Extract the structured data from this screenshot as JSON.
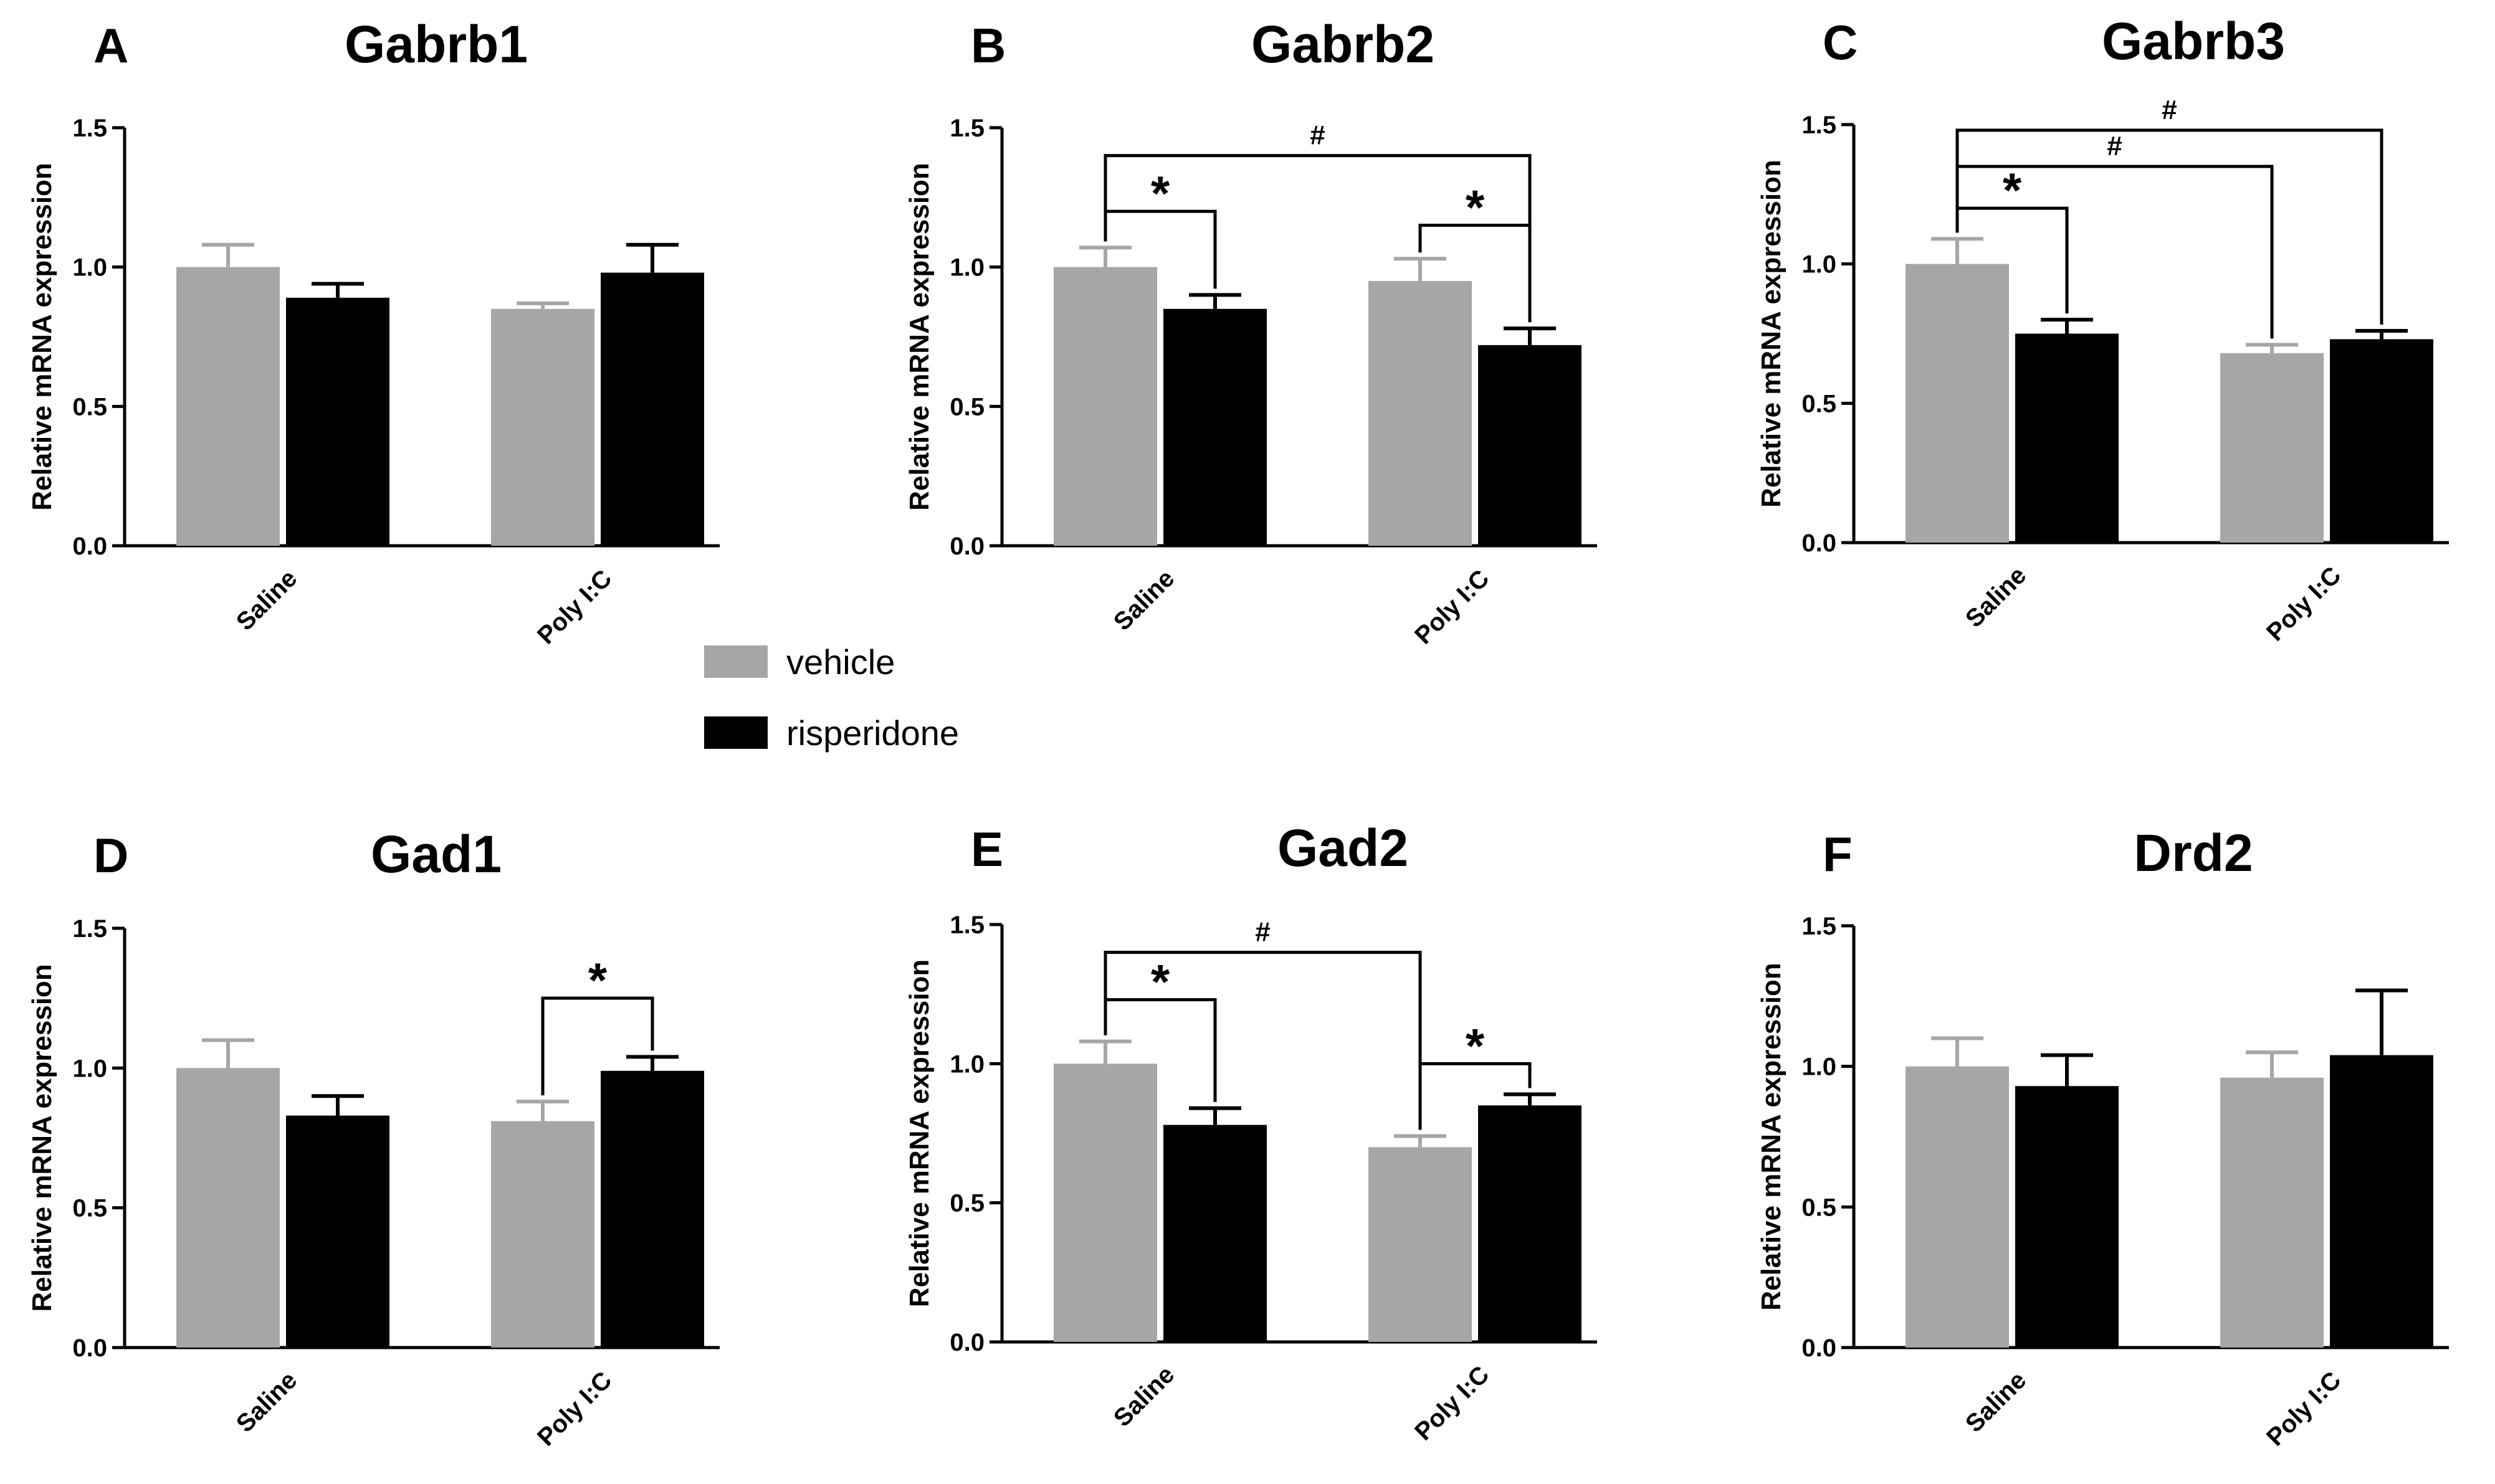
{
  "figure": {
    "legend": [
      {
        "label": "vehicle"
      },
      {
        "label": "risperidone"
      }
    ]
  },
  "colors": {
    "vehicle": "#a6a6a8",
    "risperidone": "#000000",
    "axis": "#000000"
  },
  "chart_data": [
    {
      "panel": "A",
      "type": "bar",
      "title": "Gabrb1",
      "xlabel": "",
      "ylabel": "Relative mRNA expression",
      "ylim": [
        0,
        1.5
      ],
      "yticks": [
        "0.0",
        "0.5",
        "1.0",
        "1.5"
      ],
      "categories": [
        "Saline",
        "Poly I:C"
      ],
      "series": [
        {
          "name": "vehicle",
          "values": [
            1.0,
            0.85
          ],
          "errors": [
            0.08,
            0.02
          ]
        },
        {
          "name": "risperidone",
          "values": [
            0.89,
            0.98
          ],
          "errors": [
            0.05,
            0.1
          ]
        }
      ],
      "annotations": []
    },
    {
      "panel": "B",
      "type": "bar",
      "title": "Gabrb2",
      "xlabel": "",
      "ylabel": "Relative mRNA expression",
      "ylim": [
        0,
        1.5
      ],
      "yticks": [
        "0.0",
        "0.5",
        "1.0",
        "1.5"
      ],
      "categories": [
        "Saline",
        "Poly I:C"
      ],
      "series": [
        {
          "name": "vehicle",
          "values": [
            1.0,
            0.95
          ],
          "errors": [
            0.07,
            0.08
          ]
        },
        {
          "name": "risperidone",
          "values": [
            0.85,
            0.72
          ],
          "errors": [
            0.05,
            0.06
          ]
        }
      ],
      "annotations": [
        {
          "symbol": "*",
          "from": [
            0,
            0
          ],
          "to": [
            0,
            1
          ],
          "level": 1.2
        },
        {
          "symbol": "*",
          "from": [
            1,
            0
          ],
          "to": [
            1,
            1
          ],
          "level": 1.15
        },
        {
          "symbol": "#",
          "from": [
            0,
            0
          ],
          "to": [
            1,
            1
          ],
          "level": 1.4
        }
      ]
    },
    {
      "panel": "C",
      "type": "bar",
      "title": "Gabrb3",
      "xlabel": "",
      "ylabel": "Relative mRNA expression",
      "ylim": [
        0,
        1.5
      ],
      "yticks": [
        "0.0",
        "0.5",
        "1.0",
        "1.5"
      ],
      "categories": [
        "Saline",
        "Poly I:C"
      ],
      "series": [
        {
          "name": "vehicle",
          "values": [
            1.0,
            0.68
          ],
          "errors": [
            0.09,
            0.03
          ]
        },
        {
          "name": "risperidone",
          "values": [
            0.75,
            0.73
          ],
          "errors": [
            0.05,
            0.03
          ]
        }
      ],
      "annotations": [
        {
          "symbol": "*",
          "from": [
            0,
            0
          ],
          "to": [
            0,
            1
          ],
          "level": 1.2
        },
        {
          "symbol": "#",
          "from": [
            0,
            0
          ],
          "to": [
            1,
            0
          ],
          "level": 1.35
        },
        {
          "symbol": "#",
          "from": [
            0,
            0
          ],
          "to": [
            1,
            1
          ],
          "level": 1.48
        }
      ]
    },
    {
      "panel": "D",
      "type": "bar",
      "title": "Gad1",
      "xlabel": "",
      "ylabel": "Relative mRNA expression",
      "ylim": [
        0,
        1.5
      ],
      "yticks": [
        "0.0",
        "0.5",
        "1.0",
        "1.5"
      ],
      "categories": [
        "Saline",
        "Poly I:C"
      ],
      "series": [
        {
          "name": "vehicle",
          "values": [
            1.0,
            0.81
          ],
          "errors": [
            0.1,
            0.07
          ]
        },
        {
          "name": "risperidone",
          "values": [
            0.83,
            0.99
          ],
          "errors": [
            0.07,
            0.05
          ]
        }
      ],
      "annotations": [
        {
          "symbol": "*",
          "from": [
            1,
            0
          ],
          "to": [
            1,
            1
          ],
          "level": 1.25
        }
      ]
    },
    {
      "panel": "E",
      "type": "bar",
      "title": "Gad2",
      "xlabel": "",
      "ylabel": "Relative mRNA expression",
      "ylim": [
        0,
        1.5
      ],
      "yticks": [
        "0.0",
        "0.5",
        "1.0",
        "1.5"
      ],
      "categories": [
        "Saline",
        "Poly I:C"
      ],
      "series": [
        {
          "name": "vehicle",
          "values": [
            1.0,
            0.7
          ],
          "errors": [
            0.08,
            0.04
          ]
        },
        {
          "name": "risperidone",
          "values": [
            0.78,
            0.85
          ],
          "errors": [
            0.06,
            0.04
          ]
        }
      ],
      "annotations": [
        {
          "symbol": "*",
          "from": [
            0,
            0
          ],
          "to": [
            0,
            1
          ],
          "level": 1.23
        },
        {
          "symbol": "*",
          "from": [
            1,
            0
          ],
          "to": [
            1,
            1
          ],
          "level": 1.0
        },
        {
          "symbol": "#",
          "from": [
            0,
            0
          ],
          "to": [
            1,
            0
          ],
          "level": 1.4
        }
      ]
    },
    {
      "panel": "F",
      "type": "bar",
      "title": "Drd2",
      "xlabel": "",
      "ylabel": "Relative mRNA expression",
      "ylim": [
        0,
        1.5
      ],
      "yticks": [
        "0.0",
        "0.5",
        "1.0",
        "1.5"
      ],
      "categories": [
        "Saline",
        "Poly I:C"
      ],
      "series": [
        {
          "name": "vehicle",
          "values": [
            1.0,
            0.96
          ],
          "errors": [
            0.1,
            0.09
          ]
        },
        {
          "name": "risperidone",
          "values": [
            0.93,
            1.04
          ],
          "errors": [
            0.11,
            0.23
          ]
        }
      ],
      "annotations": []
    }
  ]
}
